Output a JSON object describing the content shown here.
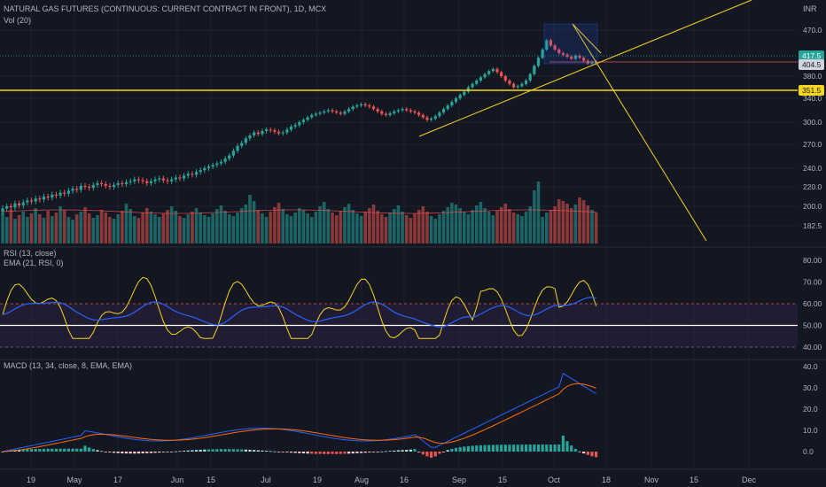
{
  "header": {
    "title": "NATURAL GAS FUTURES (CONTINUOUS: CURRENT CONTRACT IN FRONT), 1D, MCX",
    "vol_label": "Vol (20)",
    "currency": "INR"
  },
  "rsi": {
    "label1": "RSI (13, close)",
    "label2": "EMA (21, RSI, 0)"
  },
  "macd": {
    "label": "MACD (13, 34, close, 8, EMA, EMA)"
  },
  "colors": {
    "background": "#131722",
    "up": "#26a69a",
    "down": "#ef5350",
    "yellow": "#f7d51d",
    "blue": "#2962ff",
    "orange": "#ff6d00",
    "last_price": "#26a69a",
    "rsi_band": "#2a2140"
  },
  "chart_data": [
    {
      "type": "candlestick",
      "name": "price",
      "y_ticks": [
        "470.0",
        "380.0",
        "340.0",
        "300.0",
        "270.0",
        "240.0",
        "220.0",
        "200.0",
        "182.5"
      ],
      "price_tags": [
        "417.5",
        "404.5",
        "351.5"
      ],
      "horizontal_level": 351.5,
      "x_ticks": [
        "19",
        "May",
        "17",
        "Jun",
        "15",
        "Jul",
        "19",
        "Aug",
        "16",
        "Sep",
        "15",
        "Oct",
        "18",
        "Nov",
        "15",
        "Dec"
      ],
      "closes": [
        198,
        200,
        199,
        203,
        201,
        204,
        206,
        205,
        208,
        207,
        210,
        209,
        212,
        211,
        214,
        213,
        216,
        218,
        217,
        221,
        220,
        219,
        222,
        224,
        223,
        221,
        220,
        222,
        224,
        223,
        225,
        226,
        228,
        227,
        226,
        224,
        226,
        228,
        229,
        227,
        226,
        228,
        230,
        229,
        232,
        234,
        233,
        236,
        238,
        240,
        242,
        244,
        246,
        248,
        252,
        256,
        262,
        268,
        272,
        278,
        282,
        286,
        284,
        288,
        290,
        289,
        287,
        285,
        286,
        290,
        294,
        296,
        300,
        304,
        308,
        312,
        314,
        316,
        318,
        320,
        318,
        316,
        314,
        318,
        322,
        326,
        328,
        330,
        328,
        326,
        322,
        318,
        314,
        312,
        315,
        318,
        320,
        322,
        320,
        318,
        316,
        312,
        308,
        304,
        306,
        310,
        316,
        322,
        328,
        334,
        340,
        346,
        352,
        360,
        366,
        372,
        378,
        384,
        390,
        394,
        388,
        380,
        372,
        366,
        360,
        362,
        366,
        372,
        384,
        400,
        416,
        432,
        450,
        440,
        432,
        425,
        422,
        418,
        414,
        420,
        416,
        410,
        405,
        408,
        404.5
      ],
      "opens": [
        195,
        198,
        200,
        199,
        203,
        201,
        204,
        206,
        205,
        208,
        207,
        210,
        209,
        212,
        211,
        214,
        213,
        216,
        218,
        217,
        221,
        220,
        219,
        222,
        224,
        223,
        221,
        220,
        222,
        224,
        223,
        225,
        226,
        228,
        227,
        226,
        224,
        226,
        228,
        229,
        227,
        226,
        228,
        230,
        229,
        232,
        234,
        233,
        236,
        238,
        240,
        242,
        244,
        246,
        248,
        252,
        256,
        262,
        268,
        272,
        278,
        282,
        286,
        284,
        288,
        290,
        289,
        287,
        285,
        286,
        290,
        294,
        296,
        300,
        304,
        308,
        312,
        314,
        316,
        318,
        320,
        318,
        316,
        314,
        318,
        322,
        326,
        328,
        330,
        328,
        326,
        322,
        318,
        314,
        312,
        315,
        318,
        320,
        322,
        320,
        318,
        316,
        312,
        308,
        304,
        306,
        310,
        316,
        322,
        328,
        334,
        340,
        346,
        352,
        360,
        366,
        372,
        378,
        384,
        390,
        394,
        388,
        380,
        372,
        366,
        360,
        362,
        366,
        372,
        384,
        400,
        416,
        432,
        450,
        440,
        432,
        425,
        422,
        418,
        414,
        420,
        416,
        410,
        405,
        408
      ],
      "volume": [
        35,
        30,
        38,
        28,
        32,
        36,
        30,
        34,
        40,
        33,
        29,
        37,
        31,
        35,
        42,
        38,
        30,
        27,
        33,
        36,
        41,
        34,
        29,
        32,
        38,
        35,
        30,
        28,
        33,
        37,
        45,
        39,
        31,
        29,
        35,
        40,
        36,
        33,
        30,
        34,
        38,
        42,
        37,
        31,
        29,
        33,
        36,
        40,
        35,
        32,
        30,
        34,
        39,
        43,
        37,
        33,
        31,
        35,
        40,
        44,
        55,
        48,
        38,
        34,
        30,
        36,
        41,
        46,
        39,
        33,
        31,
        35,
        40,
        38,
        34,
        30,
        36,
        42,
        47,
        39,
        35,
        32,
        37,
        41,
        45,
        38,
        34,
        31,
        36,
        40,
        44,
        37,
        33,
        30,
        35,
        39,
        43,
        36,
        32,
        29,
        34,
        38,
        42,
        36,
        31,
        28,
        33,
        37,
        41,
        46,
        44,
        40,
        36,
        33,
        38,
        43,
        47,
        40,
        36,
        32,
        37,
        41,
        45,
        39,
        35,
        33,
        31,
        36,
        42,
        60,
        70,
        30,
        35,
        38,
        42,
        50,
        48,
        45,
        40,
        44,
        52,
        49,
        43,
        38,
        35
      ],
      "volume_ma": 36
    },
    {
      "type": "line",
      "name": "rsi",
      "y_ticks": [
        "80.00",
        "70.00",
        "60.00",
        "50.00",
        "40.00"
      ],
      "upper_band": 60,
      "mid_line": 50,
      "lower_band": 40
    },
    {
      "type": "line+histogram",
      "name": "macd",
      "y_ticks": [
        "40.0",
        "30.0",
        "20.0",
        "10.0",
        "0.0"
      ]
    }
  ]
}
